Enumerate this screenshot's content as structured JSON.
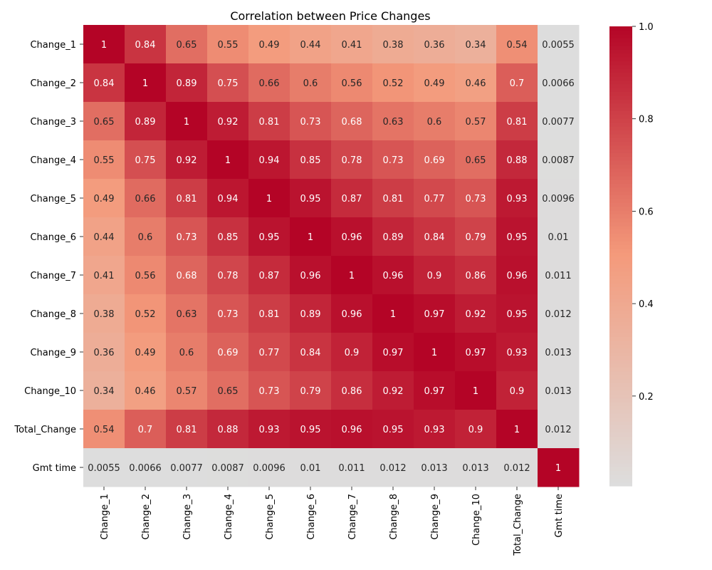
{
  "chart_data": {
    "type": "heatmap",
    "title": "Correlation between Price Changes",
    "rows": [
      "Change_1",
      "Change_2",
      "Change_3",
      "Change_4",
      "Change_5",
      "Change_6",
      "Change_7",
      "Change_8",
      "Change_9",
      "Change_10",
      "Total_Change",
      "Gmt time"
    ],
    "cols": [
      "Change_1",
      "Change_2",
      "Change_3",
      "Change_4",
      "Change_5",
      "Change_6",
      "Change_7",
      "Change_8",
      "Change_9",
      "Change_10",
      "Total_Change",
      "Gmt time"
    ],
    "values": [
      [
        1,
        0.84,
        0.65,
        0.55,
        0.49,
        0.44,
        0.41,
        0.38,
        0.36,
        0.34,
        0.54,
        0.0055
      ],
      [
        0.84,
        1,
        0.89,
        0.75,
        0.66,
        0.6,
        0.56,
        0.52,
        0.49,
        0.46,
        0.7,
        0.0066
      ],
      [
        0.65,
        0.89,
        1,
        0.92,
        0.81,
        0.73,
        0.68,
        0.63,
        0.6,
        0.57,
        0.81,
        0.0077
      ],
      [
        0.55,
        0.75,
        0.92,
        1,
        0.94,
        0.85,
        0.78,
        0.73,
        0.69,
        0.65,
        0.88,
        0.0087
      ],
      [
        0.49,
        0.66,
        0.81,
        0.94,
        1,
        0.95,
        0.87,
        0.81,
        0.77,
        0.73,
        0.93,
        0.0096
      ],
      [
        0.44,
        0.6,
        0.73,
        0.85,
        0.95,
        1,
        0.96,
        0.89,
        0.84,
        0.79,
        0.95,
        0.01
      ],
      [
        0.41,
        0.56,
        0.68,
        0.78,
        0.87,
        0.96,
        1,
        0.96,
        0.9,
        0.86,
        0.96,
        0.011
      ],
      [
        0.38,
        0.52,
        0.63,
        0.73,
        0.81,
        0.89,
        0.96,
        1,
        0.97,
        0.92,
        0.95,
        0.012
      ],
      [
        0.36,
        0.49,
        0.6,
        0.69,
        0.77,
        0.84,
        0.9,
        0.97,
        1,
        0.97,
        0.93,
        0.013
      ],
      [
        0.34,
        0.46,
        0.57,
        0.65,
        0.73,
        0.79,
        0.86,
        0.92,
        0.97,
        1,
        0.9,
        0.013
      ],
      [
        0.54,
        0.7,
        0.81,
        0.88,
        0.93,
        0.95,
        0.96,
        0.95,
        0.93,
        0.9,
        1,
        0.012
      ],
      [
        0.0055,
        0.0066,
        0.0077,
        0.0087,
        0.0096,
        0.01,
        0.011,
        0.012,
        0.013,
        0.013,
        0.012,
        1
      ]
    ],
    "colormap": "coolwarm",
    "vmin": 0.0055,
    "vmax": 1.0,
    "colorbar_ticks": [
      0.2,
      0.4,
      0.6,
      0.8,
      1.0
    ],
    "colorbar_tick_labels": [
      "0.2",
      "0.4",
      "0.6",
      "0.8",
      "1.0"
    ],
    "annotations": true
  }
}
